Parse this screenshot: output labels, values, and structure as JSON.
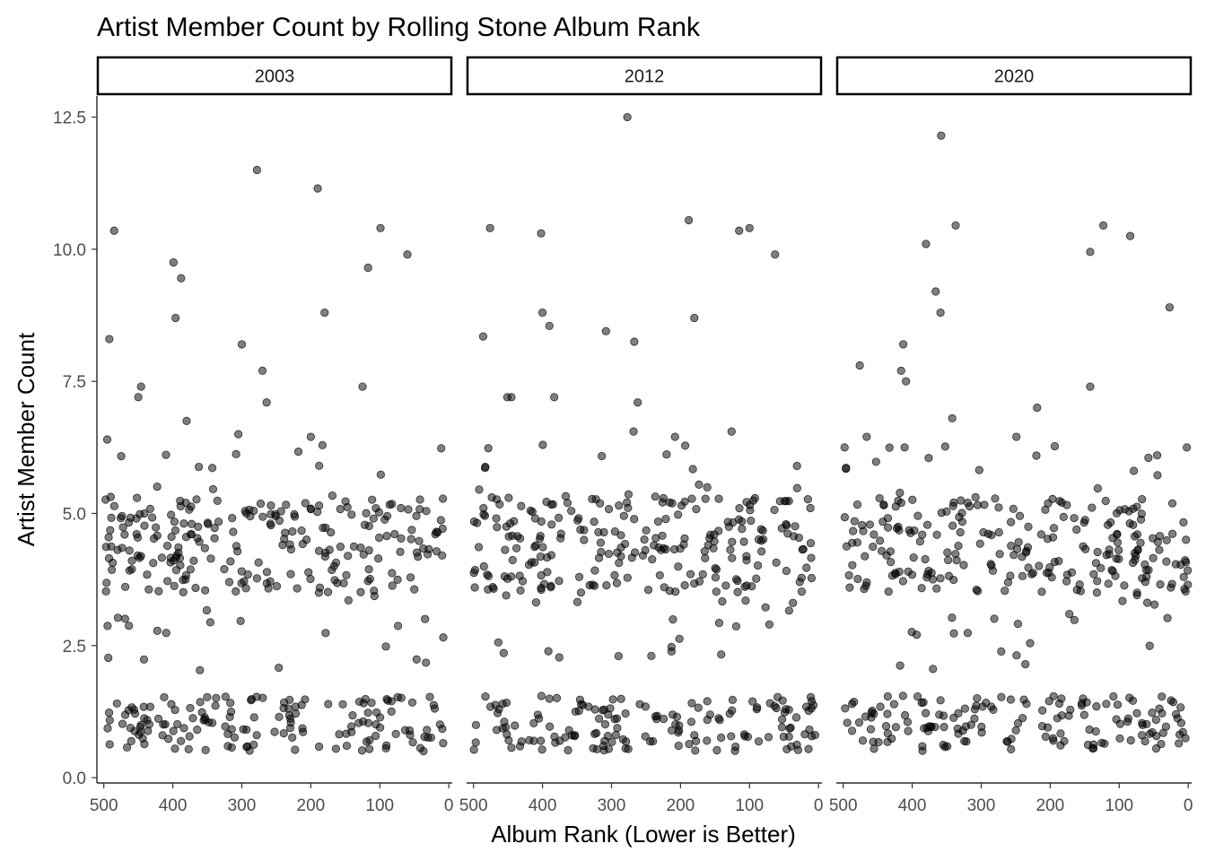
{
  "chart_data": {
    "type": "scatter",
    "title": "Artist Member Count by Rolling Stone Album Rank",
    "xlabel": "Album Rank (Lower is Better)",
    "ylabel": "Artist Member Count",
    "x_reversed": true,
    "xlim": [
      510,
      -5
    ],
    "ylim": [
      -0.1,
      12.9
    ],
    "x_ticks": [
      500,
      400,
      300,
      200,
      100,
      0
    ],
    "x_tick_labels": [
      "500",
      "400",
      "300",
      "200",
      "100",
      "0"
    ],
    "y_ticks": [
      0,
      2.5,
      5,
      7.5,
      10,
      12.5
    ],
    "y_tick_labels": [
      "0.0",
      "2.5",
      "5.0",
      "7.5",
      "10.0",
      "12.5"
    ],
    "grid": false,
    "legend": "none",
    "point_color": "#000000",
    "point_alpha": 0.5,
    "facets": [
      {
        "label": "2003",
        "outliers": [
          {
            "x": 492,
            "y": 8.3
          },
          {
            "x": 485,
            "y": 10.35
          },
          {
            "x": 450,
            "y": 7.2
          },
          {
            "x": 446,
            "y": 7.4
          },
          {
            "x": 399,
            "y": 9.75
          },
          {
            "x": 396,
            "y": 8.7
          },
          {
            "x": 388,
            "y": 9.45
          },
          {
            "x": 300,
            "y": 8.2
          },
          {
            "x": 278,
            "y": 11.5
          },
          {
            "x": 270,
            "y": 7.7
          },
          {
            "x": 264,
            "y": 7.1
          },
          {
            "x": 190,
            "y": 11.15
          },
          {
            "x": 180,
            "y": 8.8
          },
          {
            "x": 125,
            "y": 7.4
          },
          {
            "x": 117,
            "y": 9.65
          },
          {
            "x": 99,
            "y": 10.4
          },
          {
            "x": 60,
            "y": 9.9
          },
          {
            "x": 495,
            "y": 6.4
          },
          {
            "x": 380,
            "y": 6.75
          },
          {
            "x": 305,
            "y": 6.5
          },
          {
            "x": 200,
            "y": 6.45
          }
        ],
        "bands": [
          {
            "seed": 11,
            "n": 150,
            "ymin": 0.5,
            "ymax": 1.55
          },
          {
            "seed": 12,
            "n": 190,
            "ymin": 3.5,
            "ymax": 5.3
          },
          {
            "seed": 13,
            "n": 70,
            "ymin": 2.0,
            "ymax": 6.3
          }
        ]
      },
      {
        "label": "2012",
        "outliers": [
          {
            "x": 476,
            "y": 10.4
          },
          {
            "x": 486,
            "y": 8.35
          },
          {
            "x": 445,
            "y": 7.2
          },
          {
            "x": 402,
            "y": 10.3
          },
          {
            "x": 400,
            "y": 8.8
          },
          {
            "x": 390,
            "y": 8.55
          },
          {
            "x": 383,
            "y": 7.2
          },
          {
            "x": 308,
            "y": 8.45
          },
          {
            "x": 277,
            "y": 12.5
          },
          {
            "x": 267,
            "y": 8.25
          },
          {
            "x": 262,
            "y": 7.1
          },
          {
            "x": 188,
            "y": 10.55
          },
          {
            "x": 180,
            "y": 8.7
          },
          {
            "x": 115,
            "y": 10.35
          },
          {
            "x": 100,
            "y": 10.4
          },
          {
            "x": 63,
            "y": 9.9
          },
          {
            "x": 451,
            "y": 7.2
          },
          {
            "x": 268,
            "y": 6.55
          },
          {
            "x": 208,
            "y": 6.45
          },
          {
            "x": 126,
            "y": 6.55
          }
        ],
        "bands": [
          {
            "seed": 21,
            "n": 150,
            "ymin": 0.5,
            "ymax": 1.55
          },
          {
            "seed": 22,
            "n": 190,
            "ymin": 3.5,
            "ymax": 5.3
          },
          {
            "seed": 23,
            "n": 70,
            "ymin": 2.0,
            "ymax": 6.3
          }
        ]
      },
      {
        "label": "2020",
        "outliers": [
          {
            "x": 358,
            "y": 12.15
          },
          {
            "x": 337,
            "y": 10.45
          },
          {
            "x": 380,
            "y": 10.1
          },
          {
            "x": 366,
            "y": 9.2
          },
          {
            "x": 359,
            "y": 8.8
          },
          {
            "x": 413,
            "y": 8.2
          },
          {
            "x": 416,
            "y": 7.7
          },
          {
            "x": 409,
            "y": 7.5
          },
          {
            "x": 476,
            "y": 7.8
          },
          {
            "x": 342,
            "y": 6.8
          },
          {
            "x": 142,
            "y": 9.95
          },
          {
            "x": 123,
            "y": 10.45
          },
          {
            "x": 84,
            "y": 10.25
          },
          {
            "x": 27,
            "y": 8.9
          },
          {
            "x": 142,
            "y": 7.4
          },
          {
            "x": 219,
            "y": 7.0
          },
          {
            "x": 411,
            "y": 6.25
          },
          {
            "x": 466,
            "y": 6.45
          },
          {
            "x": 498,
            "y": 6.25
          },
          {
            "x": 2,
            "y": 6.25
          },
          {
            "x": 45,
            "y": 6.1
          },
          {
            "x": 249,
            "y": 6.45
          }
        ],
        "bands": [
          {
            "seed": 31,
            "n": 150,
            "ymin": 0.5,
            "ymax": 1.55
          },
          {
            "seed": 32,
            "n": 190,
            "ymin": 3.5,
            "ymax": 5.3
          },
          {
            "seed": 33,
            "n": 70,
            "ymin": 2.0,
            "ymax": 6.3
          }
        ]
      }
    ]
  }
}
